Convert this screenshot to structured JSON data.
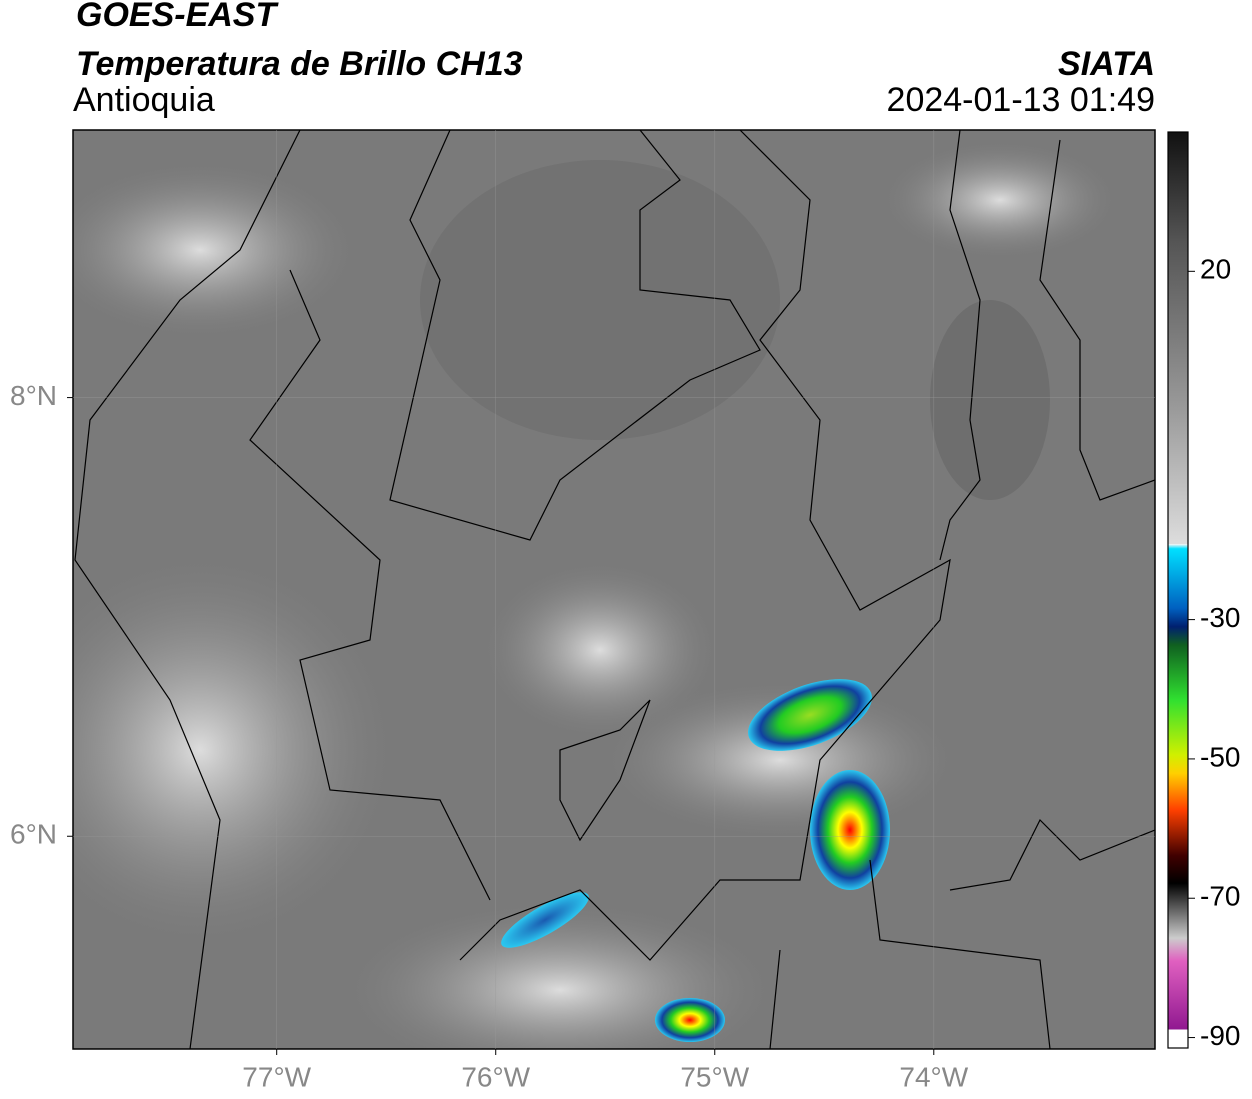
{
  "header": {
    "title": "GOES-EAST",
    "subtitle": "Temperatura de Brillo CH13",
    "region": "Antioquia",
    "source": "SIATA",
    "datetime": "2024-01-13 01:49"
  },
  "map": {
    "lonlim": [
      -77.93,
      -72.99
    ],
    "latlim": [
      5.03,
      9.22
    ],
    "grid": true,
    "lon_ticks": [
      {
        "value": -77,
        "label": "77°W"
      },
      {
        "value": -76,
        "label": "76°W"
      },
      {
        "value": -75,
        "label": "75°W"
      },
      {
        "value": -74,
        "label": "74°W"
      }
    ],
    "lat_ticks": [
      {
        "value": 8,
        "label": "8°N"
      },
      {
        "value": 6,
        "label": "6°N"
      }
    ]
  },
  "colorbar": {
    "lim": [
      -91.5,
      40
    ],
    "ticks": [
      20,
      -30,
      -50,
      -70,
      -90
    ]
  }
}
